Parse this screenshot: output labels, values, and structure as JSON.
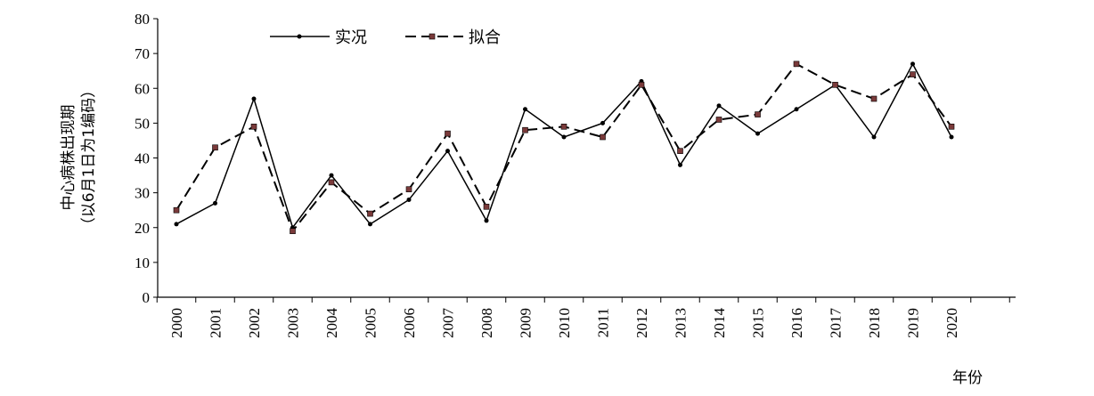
{
  "chart_data": {
    "type": "line",
    "x": [
      "2000",
      "2001",
      "2002",
      "2003",
      "2004",
      "2005",
      "2006",
      "2007",
      "2008",
      "2009",
      "2010",
      "2011",
      "2012",
      "2013",
      "2014",
      "2015",
      "2016",
      "2017",
      "2018",
      "2019",
      "2020"
    ],
    "series": [
      {
        "name": "实况",
        "style": "solid",
        "color": "#000000",
        "values": [
          21,
          27,
          57,
          20,
          35,
          21,
          28,
          42,
          22,
          54,
          46,
          50,
          62,
          38,
          55,
          47,
          54,
          61,
          46,
          67,
          46
        ]
      },
      {
        "name": "拟合",
        "style": "dashed",
        "color": "#000000",
        "marker_color": "#7a3a3a",
        "values": [
          25,
          43,
          49,
          19,
          33,
          24,
          31,
          47,
          26,
          48,
          49,
          46,
          61,
          42,
          51,
          52.5,
          67,
          61,
          57,
          64,
          49
        ]
      }
    ],
    "ylabel_lines": [
      "中心病株出现期",
      "（以6月1日为1编码）"
    ],
    "xlabel": "年份",
    "ylim": [
      0,
      80
    ],
    "yticks": [
      0,
      10,
      20,
      30,
      40,
      50,
      60,
      70,
      80
    ],
    "grid": false,
    "legend": "top-left"
  }
}
